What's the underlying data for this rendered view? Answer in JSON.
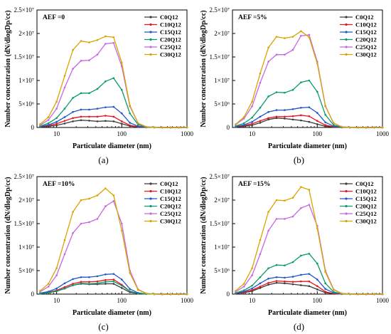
{
  "chart_data": [
    {
      "type": "line",
      "panel_label": "(a)",
      "annotation": "AEF =0",
      "xlabel": "Particulate diameter (nm)",
      "ylabel": "Number concentration (dN/dlogDp/cc)",
      "x_scale": "log",
      "xlim": [
        5,
        1000
      ],
      "ylim": [
        0,
        25000000
      ],
      "x_ticks": [
        {
          "value": 10,
          "label": "10"
        },
        {
          "value": 100,
          "label": "100"
        },
        {
          "value": 1000,
          "label": "1000"
        }
      ],
      "y_ticks": [
        {
          "value": 0,
          "label": "0"
        },
        {
          "value": 5000000,
          "label": "5×10⁶"
        },
        {
          "value": 10000000,
          "label": "1×10⁷"
        },
        {
          "value": 15000000,
          "label": "1.5×10⁷"
        },
        {
          "value": 20000000,
          "label": "2×10⁷"
        },
        {
          "value": 25000000,
          "label": "2.5×10⁷"
        }
      ],
      "legend_position": "top-right",
      "x": [
        5.6,
        7.5,
        10,
        13.3,
        17.8,
        23.7,
        31.6,
        42.2,
        56.2,
        75,
        100,
        133,
        178,
        237,
        316,
        422,
        562,
        750,
        1000
      ],
      "series": [
        {
          "name": "C0Q12",
          "color": "#3a3a3a",
          "values": [
            100000,
            250000,
            450000,
            850000,
            1300000,
            1550000,
            1450000,
            1300000,
            1400000,
            1300000,
            800000,
            300000,
            100000,
            30000,
            10000,
            0,
            0,
            0,
            0
          ]
        },
        {
          "name": "C10Q12",
          "color": "#e8141e",
          "values": [
            150000,
            400000,
            800000,
            1400000,
            2000000,
            2300000,
            2300000,
            2300000,
            2500000,
            2300000,
            1300000,
            450000,
            150000,
            50000,
            10000,
            0,
            0,
            0,
            0
          ]
        },
        {
          "name": "C15Q12",
          "color": "#1f56c9",
          "values": [
            200000,
            550000,
            1200000,
            2200000,
            3300000,
            3800000,
            3800000,
            4000000,
            4300000,
            4400000,
            3000000,
            1000000,
            250000,
            60000,
            10000,
            0,
            0,
            0,
            0
          ]
        },
        {
          "name": "C20Q12",
          "color": "#0a9a6e",
          "values": [
            300000,
            900000,
            2000000,
            4000000,
            6300000,
            7300000,
            7300000,
            8200000,
            9800000,
            10500000,
            8000000,
            3000000,
            600000,
            100000,
            20000,
            0,
            0,
            0,
            0
          ]
        },
        {
          "name": "C25Q12",
          "color": "#c766e3",
          "values": [
            500000,
            1600000,
            4000000,
            8500000,
            12500000,
            14200000,
            14300000,
            15500000,
            17800000,
            18000000,
            13000000,
            4500000,
            900000,
            150000,
            30000,
            0,
            0,
            0,
            0
          ]
        },
        {
          "name": "C30Q12",
          "color": "#d9a400",
          "values": [
            700000,
            2200000,
            5500000,
            11000000,
            16500000,
            18400000,
            18100000,
            18600000,
            19400000,
            19200000,
            13800000,
            4700000,
            900000,
            150000,
            30000,
            0,
            0,
            0,
            0
          ]
        }
      ]
    },
    {
      "type": "line",
      "panel_label": "(b)",
      "annotation": "AEF =5%",
      "xlabel": "Particulate diameter (nm)",
      "ylabel": "Number concentration (dN/dlogDp/cc)",
      "x_scale": "log",
      "xlim": [
        5,
        1000
      ],
      "ylim": [
        0,
        25000000
      ],
      "x_ticks": [
        {
          "value": 10,
          "label": "10"
        },
        {
          "value": 100,
          "label": "100"
        },
        {
          "value": 1000,
          "label": "1000"
        }
      ],
      "y_ticks": [
        {
          "value": 0,
          "label": "0"
        },
        {
          "value": 5000000,
          "label": "5×10⁶"
        },
        {
          "value": 10000000,
          "label": "1×10⁷"
        },
        {
          "value": 15000000,
          "label": "1.5×10⁷"
        },
        {
          "value": 20000000,
          "label": "2×10⁷"
        },
        {
          "value": 25000000,
          "label": "2.5×10⁷"
        }
      ],
      "legend_position": "top-right",
      "x": [
        5.6,
        7.5,
        10,
        13.3,
        17.8,
        23.7,
        31.6,
        42.2,
        56.2,
        75,
        100,
        133,
        178,
        237,
        316,
        422,
        562,
        750,
        1000
      ],
      "series": [
        {
          "name": "C0Q12",
          "color": "#3a3a3a",
          "values": [
            100000,
            250000,
            500000,
            1000000,
            1700000,
            2000000,
            1900000,
            1700000,
            1500000,
            1200000,
            700000,
            250000,
            80000,
            20000,
            0,
            0,
            0,
            0,
            0
          ]
        },
        {
          "name": "C10Q12",
          "color": "#e8141e",
          "values": [
            150000,
            400000,
            800000,
            1400000,
            2000000,
            2300000,
            2300000,
            2400000,
            2600000,
            2400000,
            1400000,
            500000,
            150000,
            40000,
            10000,
            0,
            0,
            0,
            0
          ]
        },
        {
          "name": "C15Q12",
          "color": "#1f56c9",
          "values": [
            200000,
            550000,
            1200000,
            2300000,
            3300000,
            3700000,
            3700000,
            3900000,
            4200000,
            4300000,
            3100000,
            1100000,
            250000,
            60000,
            10000,
            0,
            0,
            0,
            0
          ]
        },
        {
          "name": "C20Q12",
          "color": "#0a9a6e",
          "values": [
            300000,
            900000,
            2100000,
            4200000,
            6600000,
            7500000,
            7400000,
            8000000,
            9600000,
            10000000,
            7600000,
            2700000,
            500000,
            100000,
            20000,
            0,
            0,
            0,
            0
          ]
        },
        {
          "name": "C25Q12",
          "color": "#c766e3",
          "values": [
            600000,
            1900000,
            4500000,
            9500000,
            14000000,
            15500000,
            15500000,
            16500000,
            19500000,
            19700000,
            14000000,
            4600000,
            900000,
            150000,
            30000,
            0,
            0,
            0,
            0
          ]
        },
        {
          "name": "C30Q12",
          "color": "#d9a400",
          "values": [
            700000,
            2200000,
            5500000,
            11500000,
            17000000,
            19300000,
            19000000,
            19300000,
            20500000,
            19200000,
            13600000,
            4500000,
            900000,
            150000,
            30000,
            0,
            0,
            0,
            0
          ]
        }
      ]
    },
    {
      "type": "line",
      "panel_label": "(c)",
      "annotation": "AEF =10%",
      "xlabel": "Particulate diameter (nm)",
      "ylabel": "Number concentration (dN/dlogDp/cc)",
      "x_scale": "log",
      "xlim": [
        5,
        1000
      ],
      "ylim": [
        0,
        25000000
      ],
      "x_ticks": [
        {
          "value": 10,
          "label": "10"
        },
        {
          "value": 100,
          "label": "100"
        },
        {
          "value": 1000,
          "label": "1000"
        }
      ],
      "y_ticks": [
        {
          "value": 0,
          "label": "0"
        },
        {
          "value": 5000000,
          "label": "5×10⁶"
        },
        {
          "value": 10000000,
          "label": "1×10⁷"
        },
        {
          "value": 15000000,
          "label": "1.5×10⁷"
        },
        {
          "value": 20000000,
          "label": "2×10⁷"
        },
        {
          "value": 25000000,
          "label": "2.5×10⁷"
        }
      ],
      "legend_position": "top-right",
      "x": [
        5.6,
        7.5,
        10,
        13.3,
        17.8,
        23.7,
        31.6,
        42.2,
        56.2,
        75,
        100,
        133,
        178,
        237,
        316,
        422,
        562,
        750,
        1000
      ],
      "series": [
        {
          "name": "C0Q12",
          "color": "#3a3a3a",
          "values": [
            100000,
            300000,
            600000,
            1200000,
            1900000,
            2200000,
            2100000,
            2100000,
            2200000,
            2200000,
            1300000,
            400000,
            120000,
            30000,
            10000,
            0,
            0,
            0,
            0
          ]
        },
        {
          "name": "C10Q12",
          "color": "#e8141e",
          "values": [
            150000,
            400000,
            800000,
            1500000,
            2200000,
            2600000,
            2600000,
            2700000,
            3000000,
            3100000,
            2000000,
            600000,
            150000,
            40000,
            10000,
            0,
            0,
            0,
            0
          ]
        },
        {
          "name": "C15Q12",
          "color": "#1f56c9",
          "values": [
            200000,
            550000,
            1200000,
            2300000,
            3200000,
            3600000,
            3600000,
            3800000,
            4200000,
            4300000,
            3100000,
            1100000,
            250000,
            60000,
            10000,
            0,
            0,
            0,
            0
          ]
        },
        {
          "name": "C20Q12",
          "color": "#0a9a6e",
          "values": [
            120000,
            300000,
            650000,
            1200000,
            1900000,
            2300000,
            2200000,
            2300000,
            2600000,
            2700000,
            1800000,
            600000,
            150000,
            30000,
            10000,
            0,
            0,
            0,
            0
          ]
        },
        {
          "name": "C25Q12",
          "color": "#c766e3",
          "values": [
            500000,
            1600000,
            4000000,
            8500000,
            13000000,
            15000000,
            15300000,
            16000000,
            18700000,
            19800000,
            15000000,
            5000000,
            1000000,
            150000,
            30000,
            0,
            0,
            0,
            0
          ]
        },
        {
          "name": "C30Q12",
          "color": "#d9a400",
          "values": [
            700000,
            2200000,
            5500000,
            11500000,
            17500000,
            20000000,
            20300000,
            21000000,
            22500000,
            21000000,
            13500000,
            4500000,
            900000,
            150000,
            30000,
            0,
            0,
            0,
            0
          ]
        }
      ]
    },
    {
      "type": "line",
      "panel_label": "(d)",
      "annotation": "AEF =15%",
      "xlabel": "Particulate diameter (nm)",
      "ylabel": "Number concentration (dN/dlogDp/cc)",
      "x_scale": "log",
      "xlim": [
        5,
        1000
      ],
      "ylim": [
        0,
        25000000
      ],
      "x_ticks": [
        {
          "value": 10,
          "label": "10"
        },
        {
          "value": 100,
          "label": "100"
        },
        {
          "value": 1000,
          "label": "1000"
        }
      ],
      "y_ticks": [
        {
          "value": 0,
          "label": "0"
        },
        {
          "value": 5000000,
          "label": "5×10⁶"
        },
        {
          "value": 10000000,
          "label": "1×10⁷"
        },
        {
          "value": 15000000,
          "label": "1.5×10⁷"
        },
        {
          "value": 20000000,
          "label": "2×10⁷"
        },
        {
          "value": 25000000,
          "label": "2.5×10⁷"
        }
      ],
      "legend_position": "top-right",
      "x": [
        5.6,
        7.5,
        10,
        13.3,
        17.8,
        23.7,
        31.6,
        42.2,
        56.2,
        75,
        100,
        133,
        178,
        237,
        316,
        422,
        562,
        750,
        1000
      ],
      "series": [
        {
          "name": "C0Q12",
          "color": "#3a3a3a",
          "values": [
            100000,
            300000,
            650000,
            1300000,
            2000000,
            2400000,
            2300000,
            2100000,
            1900000,
            1700000,
            1000000,
            300000,
            80000,
            20000,
            0,
            0,
            0,
            0,
            0
          ]
        },
        {
          "name": "C10Q12",
          "color": "#e8141e",
          "values": [
            150000,
            400000,
            850000,
            1600000,
            2400000,
            2800000,
            2700000,
            2600000,
            2700000,
            2700000,
            1700000,
            500000,
            120000,
            30000,
            10000,
            0,
            0,
            0,
            0
          ]
        },
        {
          "name": "C15Q12",
          "color": "#1f56c9",
          "values": [
            200000,
            550000,
            1200000,
            2300000,
            3300000,
            3600000,
            3500000,
            3700000,
            4100000,
            4300000,
            3100000,
            1100000,
            250000,
            60000,
            10000,
            0,
            0,
            0,
            0
          ]
        },
        {
          "name": "C20Q12",
          "color": "#0a9a6e",
          "values": [
            250000,
            800000,
            1800000,
            3600000,
            5500000,
            6200000,
            6100000,
            6800000,
            8200000,
            8600000,
            6500000,
            2300000,
            450000,
            80000,
            20000,
            0,
            0,
            0,
            0
          ]
        },
        {
          "name": "C25Q12",
          "color": "#c766e3",
          "values": [
            500000,
            1600000,
            4000000,
            8500000,
            13500000,
            16000000,
            16000000,
            16500000,
            18300000,
            19000000,
            14500000,
            5000000,
            1000000,
            150000,
            30000,
            0,
            0,
            0,
            0
          ]
        },
        {
          "name": "C30Q12",
          "color": "#d9a400",
          "values": [
            700000,
            2200000,
            5500000,
            11500000,
            17500000,
            20000000,
            19900000,
            20500000,
            22800000,
            22200000,
            14000000,
            4700000,
            900000,
            150000,
            30000,
            0,
            0,
            0,
            0
          ]
        }
      ]
    }
  ]
}
